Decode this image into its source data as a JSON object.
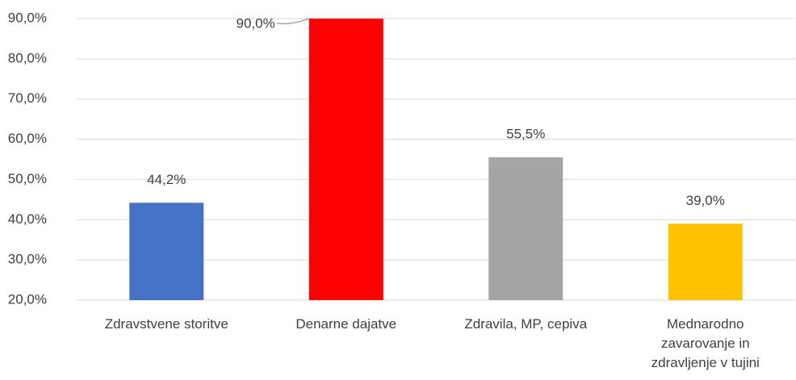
{
  "chart_data": {
    "type": "bar",
    "categories": [
      "Zdravstvene storitve",
      "Denarne dajatve",
      "Zdravila, MP, cepiva",
      "Mednarodno\nzavarovanje in\nzdravljenje v tujini"
    ],
    "values": [
      44.2,
      90.0,
      55.5,
      39.0
    ],
    "value_labels": [
      "44,2%",
      "90,0%",
      "55,5%",
      "39,0%"
    ],
    "colors": [
      "#4472c4",
      "#ff0000",
      "#a5a5a5",
      "#ffc000"
    ],
    "ylim": [
      20,
      90
    ],
    "yticks": [
      {
        "value": 20,
        "label": "20,0%"
      },
      {
        "value": 30,
        "label": "30,0%"
      },
      {
        "value": 40,
        "label": "40,0%"
      },
      {
        "value": 50,
        "label": "50,0%"
      },
      {
        "value": 60,
        "label": "60,0%"
      },
      {
        "value": 70,
        "label": "70,0%"
      },
      {
        "value": 80,
        "label": "80,0%"
      },
      {
        "value": 90,
        "label": "90,0%"
      }
    ],
    "grid": true
  }
}
